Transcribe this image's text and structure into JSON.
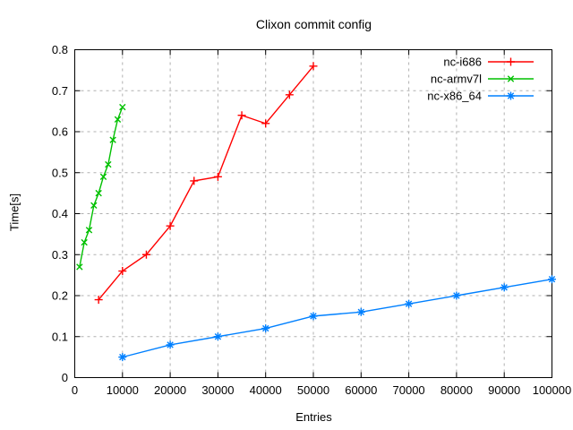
{
  "title": "Clixon commit config",
  "chart_data": {
    "type": "line",
    "title": "Clixon commit config",
    "xlabel": "Entries",
    "ylabel": "Time[s]",
    "xlim": [
      0,
      100000
    ],
    "ylim": [
      0,
      0.8
    ],
    "xticks": [
      0,
      10000,
      20000,
      30000,
      40000,
      50000,
      60000,
      70000,
      80000,
      90000,
      100000
    ],
    "xtick_labels": [
      "0",
      "10000",
      "20000",
      "30000",
      "40000",
      "50000",
      "60000",
      "70000",
      "80000",
      "90000",
      "100000"
    ],
    "yticks": [
      0,
      0.1,
      0.2,
      0.3,
      0.4,
      0.5,
      0.6,
      0.7,
      0.8
    ],
    "ytick_labels": [
      "0",
      "0.1",
      "0.2",
      "0.3",
      "0.4",
      "0.5",
      "0.6",
      "0.7",
      "0.8"
    ],
    "grid": true,
    "legend_position": "inside top right",
    "colors": {
      "background": "#ffffff",
      "axis": "#000000",
      "grid": "#b0b0b0"
    },
    "series": [
      {
        "name": "nc-i686",
        "color": "#ff0000",
        "marker": "plus",
        "x": [
          5000,
          10000,
          15000,
          20000,
          25000,
          30000,
          35000,
          40000,
          45000,
          50000
        ],
        "y": [
          0.19,
          0.26,
          0.3,
          0.37,
          0.48,
          0.49,
          0.64,
          0.62,
          0.69,
          0.76
        ]
      },
      {
        "name": "nc-armv7l",
        "color": "#00c000",
        "marker": "cross",
        "x": [
          1000,
          2000,
          3000,
          4000,
          5000,
          6000,
          7000,
          8000,
          9000,
          10000
        ],
        "y": [
          0.27,
          0.33,
          0.36,
          0.42,
          0.45,
          0.49,
          0.52,
          0.58,
          0.63,
          0.66
        ]
      },
      {
        "name": "nc-x86_64",
        "color": "#0080ff",
        "marker": "star",
        "x": [
          10000,
          20000,
          30000,
          40000,
          50000,
          60000,
          70000,
          80000,
          90000,
          100000
        ],
        "y": [
          0.05,
          0.08,
          0.1,
          0.12,
          0.15,
          0.16,
          0.18,
          0.2,
          0.22,
          0.24
        ]
      }
    ]
  }
}
